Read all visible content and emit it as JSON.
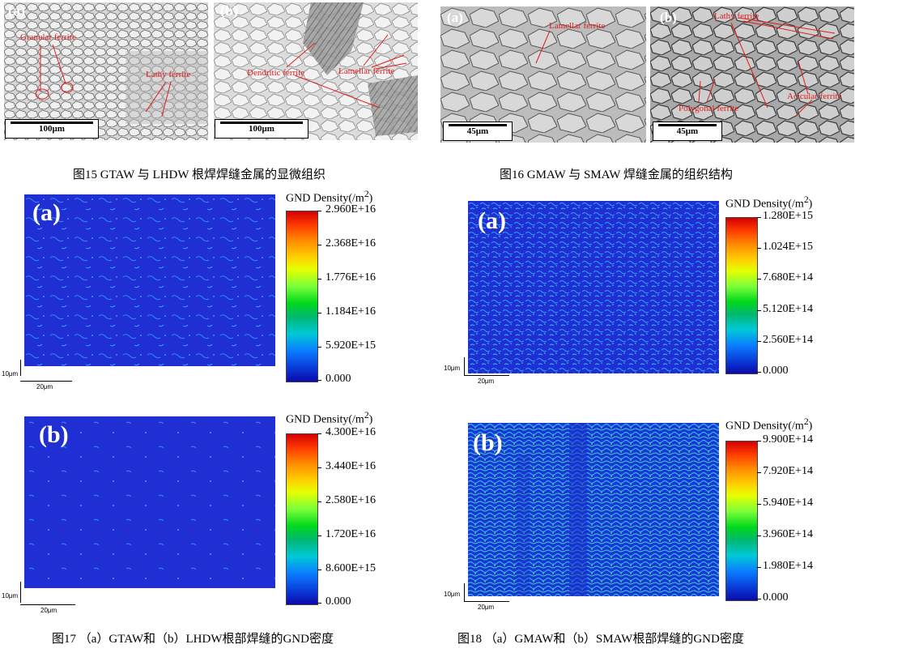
{
  "fig15": {
    "panel_a": {
      "label": "(a)",
      "annotations": {
        "granular": "Granular ferrite",
        "lathy": "Lathy ferrite"
      },
      "scale": "100μm"
    },
    "panel_b": {
      "label": "(b)",
      "annotations": {
        "dendritic": "Dendritic ferrite",
        "lamellar": "Lamellar ferrite"
      },
      "scale": "100μm"
    },
    "caption": "图15 GTAW 与 LHDW 根焊焊缝金属的显微组织"
  },
  "fig16": {
    "panel_a": {
      "label": "(a)",
      "annotations": {
        "lamellar": "Lamellar ferrite"
      },
      "scale": "45μm"
    },
    "panel_b": {
      "label": "(b)",
      "annotations": {
        "lathy": "Lathy ferrite",
        "polygonal": "Polygonal ferrite",
        "acicular": "Acicular ferrite"
      },
      "scale": "45μm"
    },
    "caption": "图16 GMAW 与 SMAW 焊缝金属的组织结构"
  },
  "fig17": {
    "panel_a": {
      "label": "(a)",
      "cb_title": "GND Density(/m",
      "cb_sup": "2",
      "cb_close": ")",
      "ticks": [
        "2.960E+16",
        "2.368E+16",
        "1.776E+16",
        "1.184E+16",
        "5.920E+15",
        "0.000"
      ],
      "scale_v": "10μm",
      "scale_h": "20μm"
    },
    "panel_b": {
      "label": "(b)",
      "cb_title": "GND Density(/m",
      "cb_sup": "2",
      "cb_close": ")",
      "ticks": [
        "4.300E+16",
        "3.440E+16",
        "2.580E+16",
        "1.720E+16",
        "8.600E+15",
        "0.000"
      ],
      "scale_v": "10μm",
      "scale_h": "20μm"
    },
    "caption": "图17 （a）GTAW和（b）LHDW根部焊缝的GND密度"
  },
  "fig18": {
    "panel_a": {
      "label": "(a)",
      "cb_title": "GND Density(/m",
      "cb_sup": "2",
      "cb_close": ")",
      "ticks": [
        "1.280E+15",
        "1.024E+15",
        "7.680E+14",
        "5.120E+14",
        "2.560E+14",
        "0.000"
      ],
      "scale_v": "10μm",
      "scale_h": "20μm"
    },
    "panel_b": {
      "label": "(b)",
      "cb_title": "GND Density(/m",
      "cb_sup": "2",
      "cb_close": ")",
      "ticks": [
        "9.900E+14",
        "7.920E+14",
        "5.940E+14",
        "3.960E+14",
        "1.980E+14",
        "0.000"
      ],
      "scale_v": "10μm",
      "scale_h": "20μm"
    },
    "caption": "图18 （a）GMAW和（b）SMAW根部焊缝的GND密度"
  },
  "colors": {
    "annotation": "#e01a1a",
    "map_base": "#1a2fd6",
    "colorbar_top": "#d40000",
    "colorbar_bottom": "#0a0aa8"
  }
}
